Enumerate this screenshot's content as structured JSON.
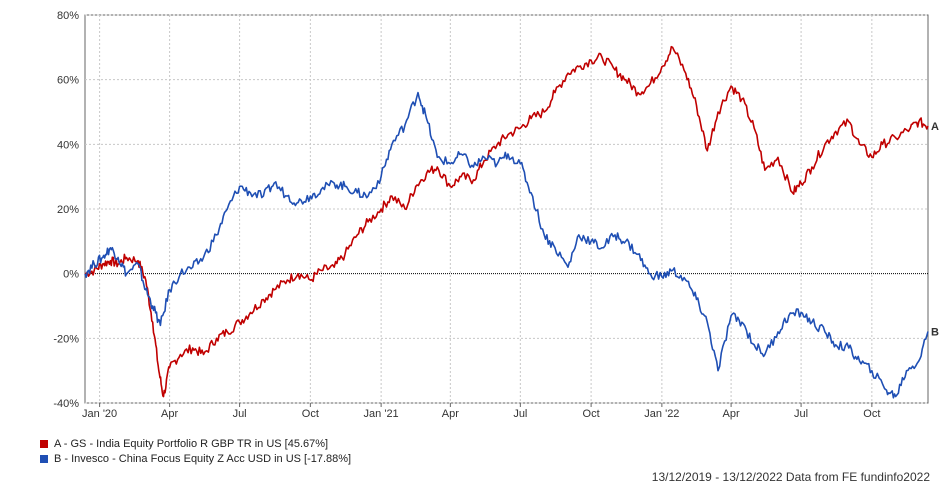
{
  "chart_data": {
    "type": "line",
    "ylim": [
      -40,
      80
    ],
    "yticks": [
      "80%",
      "60%",
      "40%",
      "20%",
      "0%",
      "-20%",
      "-40%"
    ],
    "ytick_values": [
      80,
      60,
      40,
      20,
      0,
      -20,
      -40
    ],
    "xticks": [
      "Jan '20",
      "Apr",
      "Jul",
      "Oct",
      "Jan '21",
      "Apr",
      "Jul",
      "Oct",
      "Jan '22",
      "Apr",
      "Jul",
      "Oct"
    ],
    "xtick_dates": [
      "2020-01-01",
      "2020-04-01",
      "2020-07-01",
      "2020-10-01",
      "2021-01-01",
      "2021-04-01",
      "2021-07-01",
      "2021-10-01",
      "2022-01-01",
      "2022-04-01",
      "2022-07-01",
      "2022-10-01"
    ],
    "xlim": [
      "2019-12-13",
      "2022-12-13"
    ],
    "grid": true,
    "series": [
      {
        "name": "A - GS - India Equity Portfolio R GBP TR in US [45.67%]",
        "end_label": "A",
        "color": "#c00000",
        "points": [
          [
            "2019-12-13",
            0
          ],
          [
            "2019-12-25",
            1
          ],
          [
            "2020-01-05",
            3
          ],
          [
            "2020-01-15",
            4
          ],
          [
            "2020-01-25",
            3
          ],
          [
            "2020-02-05",
            5
          ],
          [
            "2020-02-20",
            4
          ],
          [
            "2020-03-01",
            -2
          ],
          [
            "2020-03-10",
            -15
          ],
          [
            "2020-03-18",
            -30
          ],
          [
            "2020-03-24",
            -38
          ],
          [
            "2020-04-01",
            -29
          ],
          [
            "2020-04-15",
            -25
          ],
          [
            "2020-05-01",
            -23
          ],
          [
            "2020-05-15",
            -25
          ],
          [
            "2020-06-01",
            -20
          ],
          [
            "2020-06-15",
            -18
          ],
          [
            "2020-07-01",
            -15
          ],
          [
            "2020-07-15",
            -12
          ],
          [
            "2020-08-01",
            -8
          ],
          [
            "2020-08-15",
            -5
          ],
          [
            "2020-09-01",
            -2
          ],
          [
            "2020-09-15",
            0
          ],
          [
            "2020-10-01",
            -2
          ],
          [
            "2020-10-15",
            1
          ],
          [
            "2020-11-01",
            2
          ],
          [
            "2020-11-15",
            6
          ],
          [
            "2020-12-01",
            12
          ],
          [
            "2020-12-15",
            16
          ],
          [
            "2021-01-01",
            20
          ],
          [
            "2021-01-15",
            24
          ],
          [
            "2021-02-01",
            20
          ],
          [
            "2021-02-15",
            27
          ],
          [
            "2021-03-01",
            31
          ],
          [
            "2021-03-15",
            33
          ],
          [
            "2021-04-01",
            27
          ],
          [
            "2021-04-15",
            30
          ],
          [
            "2021-05-01",
            29
          ],
          [
            "2021-05-15",
            35
          ],
          [
            "2021-06-01",
            40
          ],
          [
            "2021-06-15",
            43
          ],
          [
            "2021-07-01",
            45
          ],
          [
            "2021-07-15",
            48
          ],
          [
            "2021-08-01",
            50
          ],
          [
            "2021-08-15",
            56
          ],
          [
            "2021-09-01",
            62
          ],
          [
            "2021-09-15",
            64
          ],
          [
            "2021-10-01",
            66
          ],
          [
            "2021-10-15",
            67
          ],
          [
            "2021-11-01",
            63
          ],
          [
            "2021-11-15",
            60
          ],
          [
            "2021-12-01",
            56
          ],
          [
            "2021-12-15",
            58
          ],
          [
            "2022-01-01",
            64
          ],
          [
            "2022-01-15",
            70
          ],
          [
            "2022-02-01",
            62
          ],
          [
            "2022-02-15",
            52
          ],
          [
            "2022-03-01",
            38
          ],
          [
            "2022-03-15",
            50
          ],
          [
            "2022-04-01",
            58
          ],
          [
            "2022-04-15",
            54
          ],
          [
            "2022-05-01",
            45
          ],
          [
            "2022-05-15",
            32
          ],
          [
            "2022-06-01",
            36
          ],
          [
            "2022-06-20",
            25
          ],
          [
            "2022-07-01",
            28
          ],
          [
            "2022-07-15",
            33
          ],
          [
            "2022-08-01",
            40
          ],
          [
            "2022-08-15",
            44
          ],
          [
            "2022-09-01",
            47
          ],
          [
            "2022-09-15",
            40
          ],
          [
            "2022-10-01",
            36
          ],
          [
            "2022-10-15",
            40
          ],
          [
            "2022-11-01",
            42
          ],
          [
            "2022-11-20",
            45
          ],
          [
            "2022-12-01",
            47
          ],
          [
            "2022-12-13",
            45.67
          ]
        ]
      },
      {
        "name": "B - Invesco - China Focus Equity Z Acc USD in US [-17.88%]",
        "end_label": "B",
        "color": "#1f4fb4",
        "points": [
          [
            "2019-12-13",
            0
          ],
          [
            "2019-12-25",
            3
          ],
          [
            "2020-01-05",
            5
          ],
          [
            "2020-01-15",
            8
          ],
          [
            "2020-01-25",
            5
          ],
          [
            "2020-02-05",
            0
          ],
          [
            "2020-02-20",
            3
          ],
          [
            "2020-03-01",
            -5
          ],
          [
            "2020-03-10",
            -10
          ],
          [
            "2020-03-20",
            -16
          ],
          [
            "2020-04-01",
            -5
          ],
          [
            "2020-04-15",
            0
          ],
          [
            "2020-05-01",
            2
          ],
          [
            "2020-05-15",
            5
          ],
          [
            "2020-06-01",
            12
          ],
          [
            "2020-06-15",
            20
          ],
          [
            "2020-07-01",
            27
          ],
          [
            "2020-07-15",
            25
          ],
          [
            "2020-08-01",
            24
          ],
          [
            "2020-08-15",
            28
          ],
          [
            "2020-09-01",
            24
          ],
          [
            "2020-09-15",
            22
          ],
          [
            "2020-10-01",
            24
          ],
          [
            "2020-10-15",
            26
          ],
          [
            "2020-11-01",
            28
          ],
          [
            "2020-11-15",
            27
          ],
          [
            "2020-12-01",
            25
          ],
          [
            "2020-12-15",
            24
          ],
          [
            "2021-01-01",
            30
          ],
          [
            "2021-01-15",
            40
          ],
          [
            "2021-02-01",
            46
          ],
          [
            "2021-02-18",
            56
          ],
          [
            "2021-03-01",
            48
          ],
          [
            "2021-03-15",
            36
          ],
          [
            "2021-04-01",
            34
          ],
          [
            "2021-04-15",
            37
          ],
          [
            "2021-05-01",
            33
          ],
          [
            "2021-05-15",
            36
          ],
          [
            "2021-06-01",
            34
          ],
          [
            "2021-06-15",
            37
          ],
          [
            "2021-07-01",
            34
          ],
          [
            "2021-07-15",
            25
          ],
          [
            "2021-08-01",
            12
          ],
          [
            "2021-08-15",
            8
          ],
          [
            "2021-09-01",
            2
          ],
          [
            "2021-09-15",
            12
          ],
          [
            "2021-10-01",
            10
          ],
          [
            "2021-10-15",
            8
          ],
          [
            "2021-11-01",
            12
          ],
          [
            "2021-11-15",
            10
          ],
          [
            "2021-12-01",
            6
          ],
          [
            "2021-12-15",
            0
          ],
          [
            "2022-01-01",
            -1
          ],
          [
            "2022-01-15",
            1
          ],
          [
            "2022-02-01",
            -2
          ],
          [
            "2022-02-15",
            -8
          ],
          [
            "2022-03-01",
            -15
          ],
          [
            "2022-03-15",
            -30
          ],
          [
            "2022-04-01",
            -13
          ],
          [
            "2022-04-15",
            -15
          ],
          [
            "2022-05-01",
            -22
          ],
          [
            "2022-05-15",
            -25
          ],
          [
            "2022-06-01",
            -18
          ],
          [
            "2022-06-15",
            -13
          ],
          [
            "2022-07-01",
            -12
          ],
          [
            "2022-07-15",
            -15
          ],
          [
            "2022-08-01",
            -18
          ],
          [
            "2022-08-15",
            -22
          ],
          [
            "2022-09-01",
            -23
          ],
          [
            "2022-09-15",
            -27
          ],
          [
            "2022-10-01",
            -30
          ],
          [
            "2022-10-20",
            -36
          ],
          [
            "2022-11-01",
            -38
          ],
          [
            "2022-11-15",
            -30
          ],
          [
            "2022-12-01",
            -27
          ],
          [
            "2022-12-13",
            -17.88
          ]
        ]
      }
    ]
  },
  "footer": "13/12/2019 - 13/12/2022 Data from FE fundinfo2022"
}
